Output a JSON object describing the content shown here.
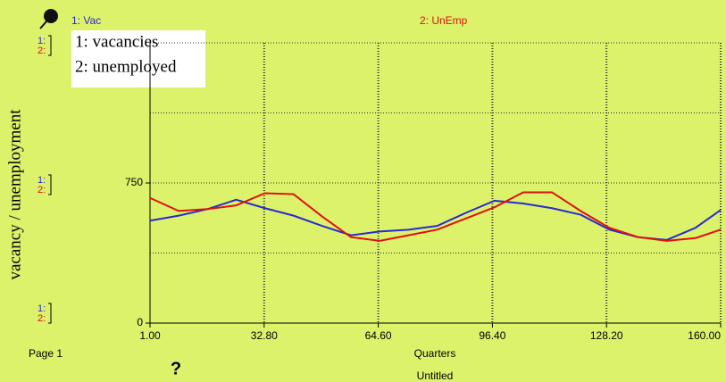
{
  "chart_data": {
    "type": "line",
    "header_labels": [
      "1: Vac",
      "2: UnEmp"
    ],
    "legend": [
      "1: vacancies",
      "2: unemployed"
    ],
    "ylabel": "vacancy / unemployment",
    "xlabel": "Quarters",
    "page_label": "Page 1",
    "footer": "Untitled",
    "help_icon": "?",
    "scale_markers": [
      "1:",
      "2:"
    ],
    "x": [
      1,
      9,
      17,
      25,
      33,
      41,
      49,
      57,
      65,
      73,
      81,
      89,
      97,
      105,
      113,
      121,
      129,
      137,
      145,
      153,
      160
    ],
    "series": [
      {
        "name": "1: vacancies",
        "color": "#2a2ad0",
        "values": [
          548,
          575,
          610,
          660,
          615,
          575,
          520,
          470,
          490,
          500,
          520,
          590,
          655,
          640,
          615,
          580,
          500,
          460,
          445,
          510,
          605
        ]
      },
      {
        "name": "2: unemployed",
        "color": "#e01010",
        "values": [
          670,
          600,
          610,
          630,
          695,
          690,
          570,
          460,
          440,
          470,
          500,
          560,
          620,
          700,
          700,
          600,
          510,
          460,
          440,
          455,
          500
        ]
      }
    ],
    "xlim": [
      1,
      160
    ],
    "xticks": [
      {
        "value": 1,
        "label": "1.00"
      },
      {
        "value": 32.8,
        "label": "32.80"
      },
      {
        "value": 64.6,
        "label": "64.60"
      },
      {
        "value": 96.4,
        "label": "96.40"
      },
      {
        "value": 128.2,
        "label": "128.20"
      },
      {
        "value": 160,
        "label": "160.00"
      }
    ],
    "ylim": [
      0,
      1500
    ],
    "yticks": [
      0,
      750
    ],
    "ygrid": [
      375,
      750,
      1125,
      1500
    ],
    "grid": true
  }
}
